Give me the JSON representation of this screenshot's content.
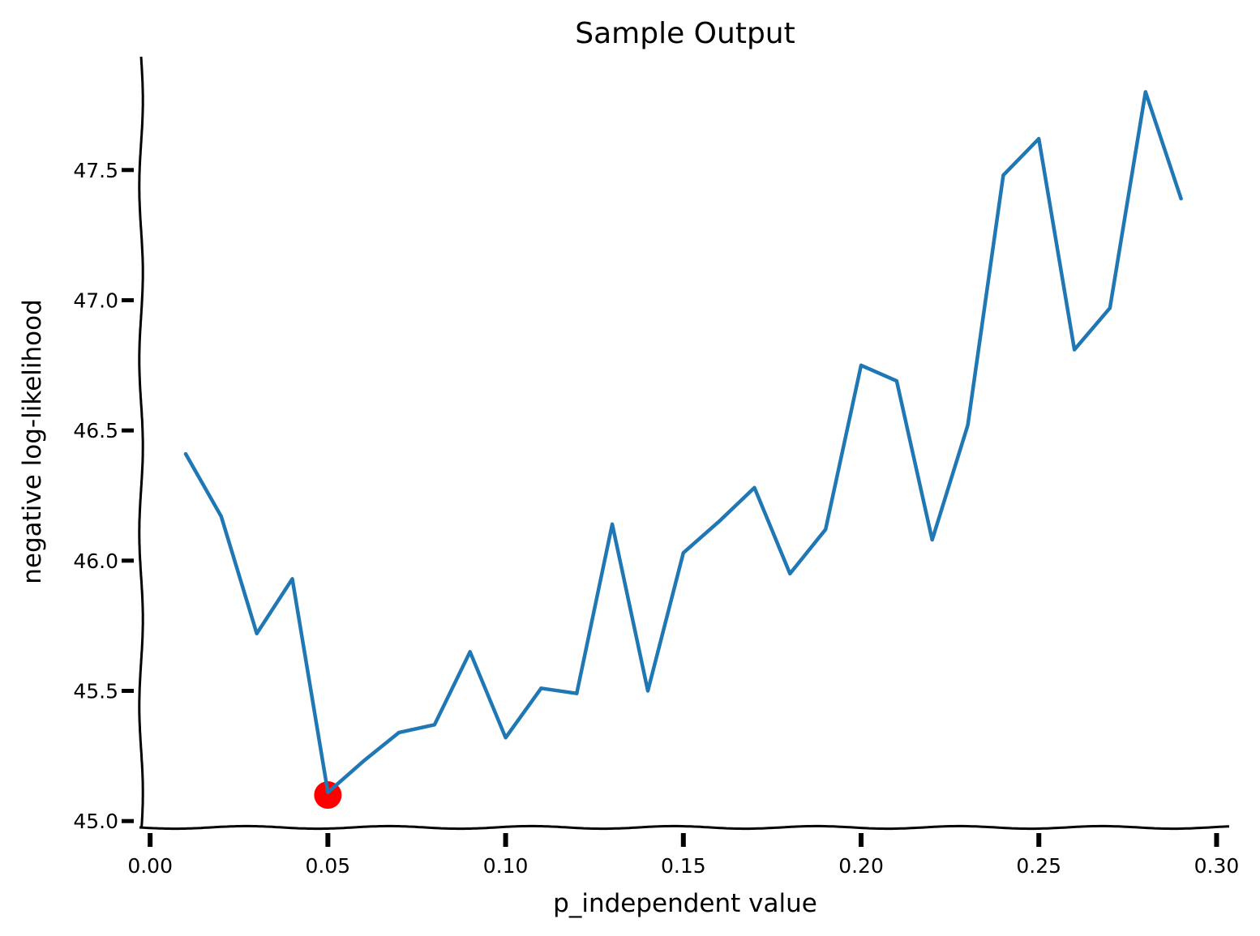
{
  "chart_data": {
    "type": "line",
    "title": "Sample Output",
    "xlabel": "p_independent value",
    "ylabel": "negative log-likelihood",
    "xlim": [
      -0.003,
      0.304
    ],
    "ylim": [
      44.985,
      47.935
    ],
    "x_ticks": [
      {
        "value": 0.0,
        "label": "0.00"
      },
      {
        "value": 0.05,
        "label": "0.05"
      },
      {
        "value": 0.1,
        "label": "0.10"
      },
      {
        "value": 0.15,
        "label": "0.15"
      },
      {
        "value": 0.2,
        "label": "0.20"
      },
      {
        "value": 0.25,
        "label": "0.25"
      },
      {
        "value": 0.3,
        "label": "0.30"
      }
    ],
    "y_ticks": [
      {
        "value": 45.0,
        "label": "45.0"
      },
      {
        "value": 45.5,
        "label": "45.5"
      },
      {
        "value": 46.0,
        "label": "46.0"
      },
      {
        "value": 46.5,
        "label": "46.5"
      },
      {
        "value": 47.0,
        "label": "47.0"
      },
      {
        "value": 47.5,
        "label": "47.5"
      }
    ],
    "grid": false,
    "series": [
      {
        "color": "#1f77b4",
        "x": [
          0.01,
          0.02,
          0.03,
          0.04,
          0.05,
          0.06,
          0.07,
          0.08,
          0.09,
          0.1,
          0.11,
          0.12,
          0.13,
          0.14,
          0.15,
          0.16,
          0.17,
          0.18,
          0.19,
          0.2,
          0.21,
          0.22,
          0.23,
          0.24,
          0.25,
          0.26,
          0.27,
          0.28,
          0.29
        ],
        "y": [
          46.41,
          46.17,
          45.72,
          45.93,
          45.11,
          45.23,
          45.34,
          45.37,
          45.65,
          45.32,
          45.51,
          45.49,
          46.14,
          45.5,
          46.03,
          46.15,
          46.28,
          45.95,
          46.12,
          46.75,
          46.69,
          46.08,
          46.52,
          47.48,
          47.62,
          46.81,
          46.97,
          47.8,
          47.39
        ]
      }
    ],
    "highlight_point": {
      "x": 0.05,
      "y": 45.1,
      "color": "#ff0000"
    }
  }
}
